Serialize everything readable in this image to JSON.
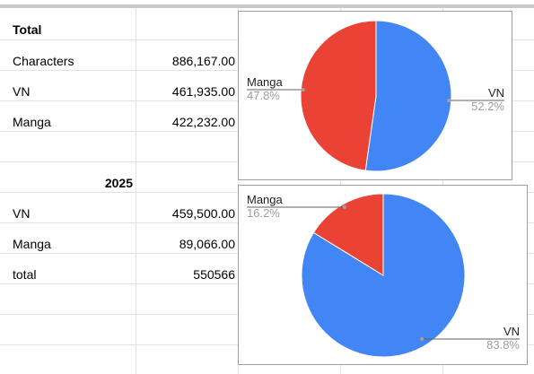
{
  "sheet": {
    "total_header": "Total",
    "total_rows": [
      {
        "label": "Characters",
        "value": "886,167.00"
      },
      {
        "label": "VN",
        "value": "461,935.00"
      },
      {
        "label": "Manga",
        "value": "422,232.00"
      }
    ],
    "year_header": "2025",
    "year_rows": [
      {
        "label": "VN",
        "value": "459,500.00"
      },
      {
        "label": "Manga",
        "value": "89,066.00"
      },
      {
        "label": "total",
        "value": "550566"
      }
    ]
  },
  "colors": {
    "vn": "#4285f4",
    "manga": "#ea4335",
    "pct": "#9e9e9e",
    "gridline": "#e2e3e3"
  },
  "chart_data": [
    {
      "type": "pie",
      "slices": [
        {
          "label": "VN",
          "value": 461935,
          "percent": "52.2%"
        },
        {
          "label": "Manga",
          "value": 422232,
          "percent": "47.8%"
        }
      ]
    },
    {
      "type": "pie",
      "slices": [
        {
          "label": "VN",
          "value": 459500,
          "percent": "83.8%"
        },
        {
          "label": "Manga",
          "value": 89066,
          "percent": "16.2%"
        }
      ]
    }
  ]
}
